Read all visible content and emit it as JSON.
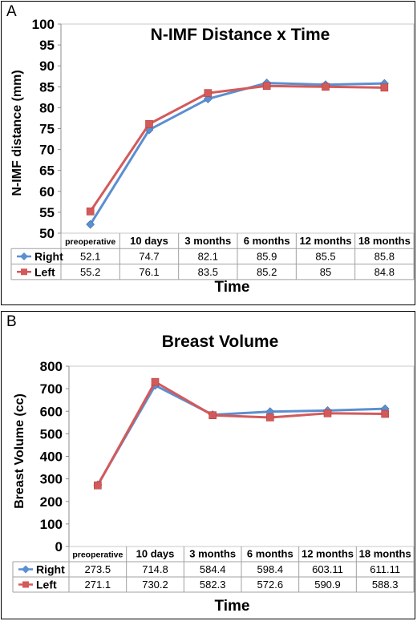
{
  "chart_data": [
    {
      "panel": "A",
      "type": "line",
      "title": "N-IMF Distance x Time",
      "ylabel": "N-IMF distance (mm)",
      "xlabel": "Time",
      "ylim": [
        50,
        100
      ],
      "yticks": [
        "50",
        "55",
        "60",
        "65",
        "70",
        "75",
        "80",
        "85",
        "90",
        "95",
        "100"
      ],
      "categories": [
        "preoperative",
        "10 days",
        "3 months",
        "6 months",
        "12 months",
        "18 months"
      ],
      "series": [
        {
          "name": "Right",
          "color": "#5b8fd0",
          "marker": "diamond",
          "values": [
            52.1,
            74.7,
            82.1,
            85.9,
            85.5,
            85.8
          ],
          "labels": [
            "52.1",
            "74.7",
            "82.1",
            "85.9",
            "85.5",
            "85.8"
          ]
        },
        {
          "name": "Left",
          "color": "#d45a5a",
          "marker": "square",
          "values": [
            55.2,
            76.1,
            83.5,
            85.2,
            85,
            84.8
          ],
          "labels": [
            "55.2",
            "76.1",
            "83.5",
            "85.2",
            "85",
            "84.8"
          ]
        }
      ],
      "grid": false
    },
    {
      "panel": "B",
      "type": "line",
      "title": "Breast Volume",
      "ylabel": "Breast Volume (cc)",
      "xlabel": "Time",
      "ylim": [
        0,
        800
      ],
      "yticks": [
        "0",
        "100",
        "200",
        "300",
        "400",
        "500",
        "600",
        "700",
        "800"
      ],
      "categories": [
        "preoperative",
        "10 days",
        "3 months",
        "6 months",
        "12 months",
        "18 months"
      ],
      "series": [
        {
          "name": "Right",
          "color": "#5b8fd0",
          "marker": "diamond",
          "values": [
            273.5,
            714.8,
            584.4,
            598.4,
            603.11,
            611.11
          ],
          "labels": [
            "273.5",
            "714.8",
            "584.4",
            "598.4",
            "603.11",
            "611.11"
          ]
        },
        {
          "name": "Left",
          "color": "#d45a5a",
          "marker": "square",
          "values": [
            271.1,
            730.2,
            582.3,
            572.6,
            590.9,
            588.3
          ],
          "labels": [
            "271.1",
            "730.2",
            "582.3",
            "572.6",
            "590.9",
            "588.3"
          ]
        }
      ],
      "grid": false
    }
  ]
}
